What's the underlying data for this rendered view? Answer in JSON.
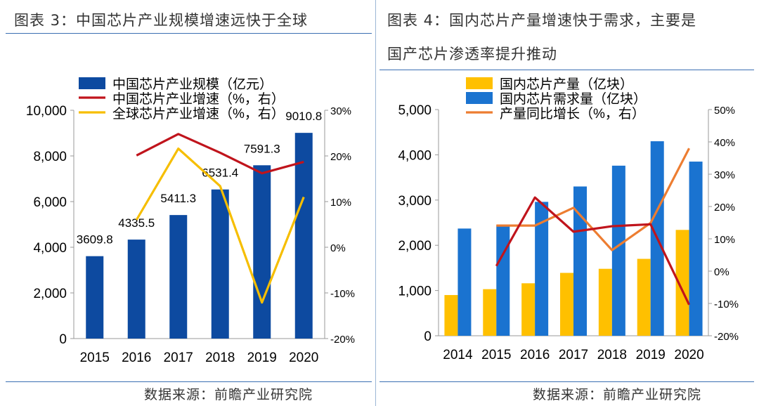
{
  "left": {
    "title": "图表 3：中国芯片产业规模增速远快于全球",
    "source": "数据来源：前瞻产业研究院"
  },
  "right": {
    "title_line1": "图表 4：国内芯片产量增速快于需求，主要是",
    "title_line2": "国产芯片渗透率提升推动",
    "source": "数据来源：前瞻产业研究院"
  },
  "chart_data": [
    {
      "type": "bar",
      "categories": [
        "2015",
        "2016",
        "2017",
        "2018",
        "2019",
        "2020"
      ],
      "y_left_range": [
        0,
        10000
      ],
      "y_left_ticks": [
        "0",
        "2,000",
        "4,000",
        "6,000",
        "8,000",
        "10,000"
      ],
      "y_right_range": [
        -20,
        30
      ],
      "y_right_ticks": [
        "-20%",
        "-10%",
        "0%",
        "10%",
        "20%",
        "30%"
      ],
      "legend_position": "top",
      "series": [
        {
          "name": "中国芯片产业规模（亿元）",
          "kind": "bar",
          "axis": "left",
          "color": "#0d4aa0",
          "values": [
            3609.8,
            4335.5,
            5411.3,
            6531.4,
            7591.3,
            9010.8
          ],
          "labels": [
            "3609.8",
            "4335.5",
            "5411.3",
            "6531.4",
            "7591.3",
            "9010.8"
          ]
        },
        {
          "name": "中国芯片产业增速（%，右）",
          "kind": "line",
          "axis": "right",
          "color": "#c0141c",
          "values": [
            null,
            20.1,
            24.8,
            20.7,
            16.2,
            18.7
          ]
        },
        {
          "name": "全球芯片产业增速（%，右）",
          "kind": "line",
          "axis": "right",
          "color": "#f6be00",
          "values": [
            null,
            6.0,
            21.6,
            13.4,
            -12.1,
            11.0
          ]
        }
      ]
    },
    {
      "type": "bar",
      "categories": [
        "2014",
        "2015",
        "2016",
        "2017",
        "2018",
        "2019",
        "2020"
      ],
      "y_left_range": [
        0,
        5000
      ],
      "y_left_ticks": [
        "0",
        "1,000",
        "2,000",
        "3,000",
        "4,000",
        "5,000"
      ],
      "y_right_range": [
        -20,
        50
      ],
      "y_right_ticks": [
        "-20%",
        "-10%",
        "0%",
        "10%",
        "20%",
        "30%",
        "40%",
        "50%"
      ],
      "legend_position": "top",
      "series": [
        {
          "name": "国内芯片产量（亿块）",
          "kind": "bar",
          "axis": "left",
          "color": "#ffc000",
          "values": [
            900,
            1030,
            1160,
            1390,
            1480,
            1700,
            2340
          ]
        },
        {
          "name": "国内芯片需求量（亿块）",
          "kind": "bar",
          "axis": "left",
          "color": "#1a73d0",
          "values": [
            2370,
            2440,
            2960,
            3300,
            3760,
            4300,
            3850
          ]
        },
        {
          "name": "产量同比增长（%，右）",
          "kind": "line",
          "axis": "right",
          "color": "#ed7d31",
          "values": [
            null,
            14.1,
            14.1,
            19.6,
            6.5,
            14.9,
            38.0
          ]
        },
        {
          "name": "",
          "kind": "line",
          "axis": "right",
          "color": "#c0141c",
          "values": [
            null,
            1.6,
            22.8,
            12.2,
            13.9,
            14.5,
            -10.4
          ]
        }
      ]
    }
  ]
}
